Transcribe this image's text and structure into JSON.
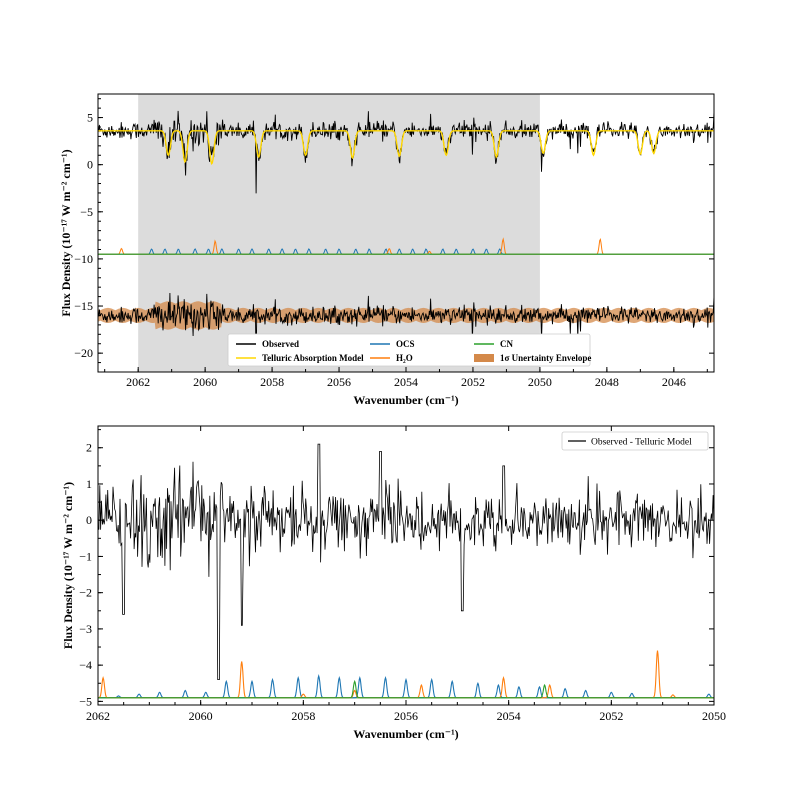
{
  "chart_data": [
    {
      "type": "line",
      "xlabel": "Wavenumber (cm⁻¹)",
      "ylabel": "Flux Density (10⁻¹⁷ W m⁻² cm⁻¹)",
      "xlim": [
        2063.2,
        2044.8
      ],
      "ylim": [
        -22,
        7.5
      ],
      "xticks": [
        "2062",
        "2060",
        "2058",
        "2056",
        "2054",
        "2052",
        "2050",
        "2048",
        "2046"
      ],
      "yticks": [
        "5",
        "0",
        "−5",
        "−10",
        "−15",
        "−20"
      ],
      "shaded_region": [
        2062,
        2050
      ],
      "continuum_level": 3.6,
      "telluric_lines": [
        {
          "x": 2061.1,
          "depth": 2.6
        },
        {
          "x": 2060.6,
          "depth": 3.3
        },
        {
          "x": 2059.8,
          "depth": 3.5
        },
        {
          "x": 2058.4,
          "depth": 2.8
        },
        {
          "x": 2057.0,
          "depth": 2.6
        },
        {
          "x": 2055.6,
          "depth": 2.9
        },
        {
          "x": 2054.2,
          "depth": 2.7
        },
        {
          "x": 2052.8,
          "depth": 2.6
        },
        {
          "x": 2051.3,
          "depth": 2.8
        },
        {
          "x": 2049.9,
          "depth": 2.4
        },
        {
          "x": 2048.4,
          "depth": 2.6
        },
        {
          "x": 2047.0,
          "depth": 2.5
        },
        {
          "x": 2046.6,
          "depth": 2.4
        }
      ],
      "molecular_offset": -9.5,
      "residual_offset": -16,
      "ocs_lines": [
        2061.6,
        2061.2,
        2060.8,
        2060.3,
        2059.9,
        2059.5,
        2059.0,
        2058.6,
        2058.1,
        2057.7,
        2057.3,
        2056.9,
        2056.4,
        2056.0,
        2055.5,
        2055.1,
        2054.6,
        2054.2,
        2053.8,
        2053.4,
        2052.9,
        2052.5,
        2052.0,
        2051.6,
        2051.2
      ],
      "h2o_lines": [
        {
          "x": 2062.5,
          "h": 0.6
        },
        {
          "x": 2059.7,
          "h": 1.4
        },
        {
          "x": 2054.5,
          "h": 0.6
        },
        {
          "x": 2053.3,
          "h": 0.3
        },
        {
          "x": 2051.1,
          "h": 1.6
        },
        {
          "x": 2048.2,
          "h": 1.6
        }
      ],
      "legend": [
        {
          "label": "Observed",
          "color": "#000000",
          "kind": "line"
        },
        {
          "label": "Telluric Absorption Model",
          "color": "#ffd700",
          "kind": "line"
        },
        {
          "label": "OCS",
          "color": "#1f77b4",
          "kind": "line"
        },
        {
          "label": "H₂O",
          "color": "#ff7f0e",
          "kind": "line"
        },
        {
          "label": "CN",
          "color": "#2ca02c",
          "kind": "line"
        },
        {
          "label": "1σ Unertainty Envelope",
          "color": "#d4894a",
          "kind": "patch"
        }
      ],
      "legend_position": "lower center"
    },
    {
      "type": "line",
      "xlabel": "Wavenumber (cm⁻¹)",
      "ylabel": "Flux Density (10⁻¹⁷ W m⁻² cm⁻¹)",
      "xlim": [
        2062,
        2050
      ],
      "ylim": [
        -5.1,
        2.6
      ],
      "xticks": [
        "2062",
        "2060",
        "2058",
        "2056",
        "2054",
        "2052",
        "2050"
      ],
      "yticks": [
        "2",
        "1",
        "0",
        "−1",
        "−2",
        "−3",
        "−4",
        "−5"
      ],
      "molecular_baseline": -4.9,
      "ocs_lines": [
        {
          "x": 2061.6,
          "h": 0.05
        },
        {
          "x": 2061.2,
          "h": 0.1
        },
        {
          "x": 2060.8,
          "h": 0.15
        },
        {
          "x": 2060.3,
          "h": 0.2
        },
        {
          "x": 2059.9,
          "h": 0.15
        },
        {
          "x": 2059.5,
          "h": 0.45
        },
        {
          "x": 2059.0,
          "h": 0.45
        },
        {
          "x": 2058.6,
          "h": 0.5
        },
        {
          "x": 2058.1,
          "h": 0.55
        },
        {
          "x": 2057.7,
          "h": 0.6
        },
        {
          "x": 2057.3,
          "h": 0.55
        },
        {
          "x": 2056.9,
          "h": 0.55
        },
        {
          "x": 2056.4,
          "h": 0.55
        },
        {
          "x": 2056.0,
          "h": 0.5
        },
        {
          "x": 2055.5,
          "h": 0.5
        },
        {
          "x": 2055.1,
          "h": 0.45
        },
        {
          "x": 2054.6,
          "h": 0.4
        },
        {
          "x": 2054.2,
          "h": 0.35
        },
        {
          "x": 2053.8,
          "h": 0.3
        },
        {
          "x": 2053.4,
          "h": 0.3
        },
        {
          "x": 2052.9,
          "h": 0.25
        },
        {
          "x": 2052.5,
          "h": 0.2
        },
        {
          "x": 2052.0,
          "h": 0.15
        },
        {
          "x": 2051.6,
          "h": 0.12
        },
        {
          "x": 2050.1,
          "h": 0.1
        }
      ],
      "h2o_lines": [
        {
          "x": 2061.9,
          "h": 0.55
        },
        {
          "x": 2059.2,
          "h": 1.0
        },
        {
          "x": 2058.0,
          "h": 0.1
        },
        {
          "x": 2057.0,
          "h": 0.2
        },
        {
          "x": 2055.7,
          "h": 0.35
        },
        {
          "x": 2054.1,
          "h": 0.55
        },
        {
          "x": 2053.2,
          "h": 0.35
        },
        {
          "x": 2051.1,
          "h": 1.3
        },
        {
          "x": 2050.8,
          "h": 0.08
        }
      ],
      "cn_lines": [
        {
          "x": 2057.0,
          "h": 0.45
        },
        {
          "x": 2053.3,
          "h": 0.35
        }
      ],
      "legend": [
        {
          "label": "Observed - Telluric Model",
          "color": "#000000",
          "kind": "line"
        }
      ],
      "legend_position": "upper right"
    }
  ]
}
